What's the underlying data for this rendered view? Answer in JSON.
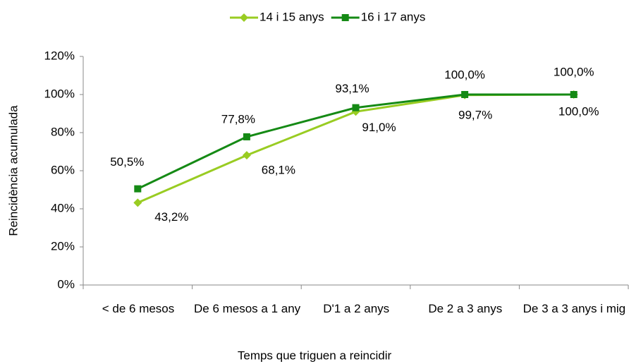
{
  "chart_data": {
    "type": "line",
    "categories": [
      "< de 6 mesos",
      "De 6 mesos a 1 any",
      "D'1 a 2 anys",
      "De 2 a 3 anys",
      "De 3 a 3 anys i mig"
    ],
    "series": [
      {
        "name": "14 i 15 anys",
        "color": "#99cc22",
        "marker": "diamond",
        "values": [
          43.2,
          68.1,
          91.0,
          99.7,
          100.0
        ],
        "value_labels": [
          "43,2%",
          "68,1%",
          "91,0%",
          "99,7%",
          "100,0%"
        ]
      },
      {
        "name": "16 i 17 anys",
        "color": "#158a15",
        "marker": "square",
        "values": [
          50.5,
          77.8,
          93.1,
          100.0,
          100.0
        ],
        "value_labels": [
          "50,5%",
          "77,8%",
          "93,1%",
          "100,0%",
          "100,0%"
        ]
      }
    ],
    "ylim": [
      0,
      120
    ],
    "yticks": [
      {
        "value": 0,
        "label": "0%"
      },
      {
        "value": 20,
        "label": "20%"
      },
      {
        "value": 40,
        "label": "40%"
      },
      {
        "value": 60,
        "label": "60%"
      },
      {
        "value": 80,
        "label": "80%"
      },
      {
        "value": 100,
        "label": "100%"
      },
      {
        "value": 120,
        "label": "120%"
      }
    ],
    "xlabel": "Temps que triguen a reincidir",
    "ylabel": "Reincidència acumulada",
    "legend": "top"
  }
}
